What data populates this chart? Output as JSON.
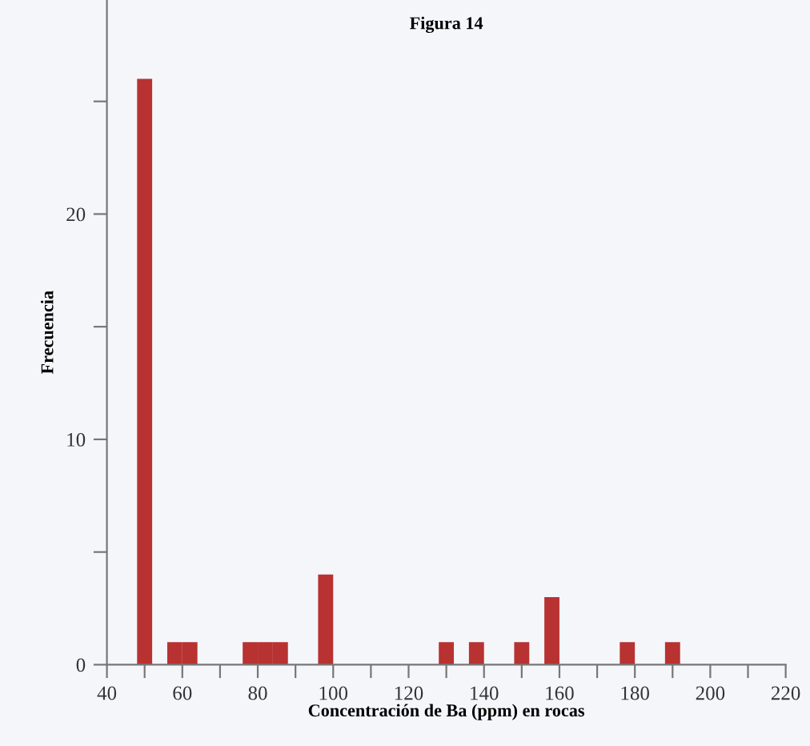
{
  "chart_data": {
    "type": "histogram",
    "title": "Figura 14",
    "xlabel": "Concentración de Ba (ppm) en rocas",
    "ylabel": "Frecuencia",
    "bins": [
      48,
      52,
      56,
      60,
      64,
      68,
      72,
      76,
      80,
      84,
      88,
      92,
      96,
      100,
      104,
      108,
      112,
      116,
      120,
      124,
      128,
      132,
      136,
      140,
      144,
      148,
      152,
      156,
      160,
      164,
      168,
      172,
      176,
      180,
      184,
      188,
      192
    ],
    "values": [
      26,
      0,
      1,
      1,
      0,
      0,
      0,
      1,
      1,
      1,
      0,
      0,
      4,
      0,
      0,
      0,
      0,
      0,
      0,
      0,
      1,
      0,
      1,
      0,
      0,
      1,
      0,
      3,
      0,
      0,
      0,
      0,
      1,
      0,
      0,
      1
    ],
    "color": "#b83232",
    "xlim": [
      40,
      220
    ],
    "ylim": [
      0,
      29.5
    ],
    "xticks": [
      40,
      {
        "value": 50,
        "label": null
      },
      60,
      {
        "value": 70,
        "label": null
      },
      80,
      {
        "value": 90,
        "label": null
      },
      100,
      {
        "value": 110,
        "label": null
      },
      120,
      {
        "value": 130,
        "label": null
      },
      140,
      {
        "value": 150,
        "label": null
      },
      160,
      {
        "value": 170,
        "label": null
      },
      180,
      {
        "value": 190,
        "label": null
      },
      200,
      {
        "value": 210,
        "label": null
      },
      220
    ],
    "yticks": [
      0,
      {
        "value": 5,
        "label": null
      },
      10,
      {
        "value": 15,
        "label": null
      },
      20,
      {
        "value": 25,
        "label": null
      }
    ],
    "grid": false
  }
}
